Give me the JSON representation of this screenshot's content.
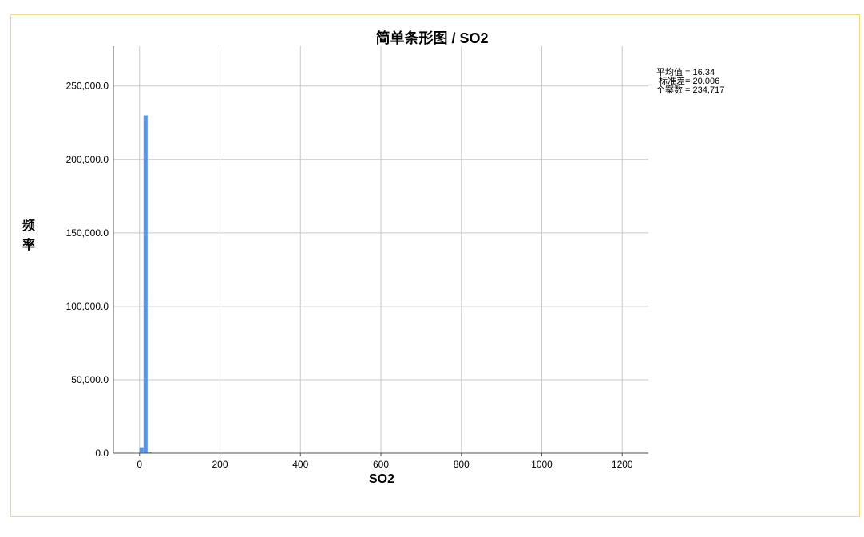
{
  "chart_data": {
    "type": "bar",
    "title": "简单条形图 / SO2",
    "xlabel": "SO2",
    "ylabel": "频率",
    "xlim": [
      -65,
      1265
    ],
    "ylim": [
      0,
      277000
    ],
    "xticks": [
      0,
      200,
      400,
      600,
      800,
      1000,
      1200
    ],
    "yticks": [
      0,
      50000,
      100000,
      150000,
      200000,
      250000
    ],
    "ytick_labels": [
      "0.0",
      "50,000.0",
      "100,000.0",
      "150,000.0",
      "200,000.0",
      "250,000.0"
    ],
    "grid": true,
    "bars": [
      {
        "x0": 0,
        "x1": 10,
        "value": 4000
      },
      {
        "x0": 10,
        "x1": 20,
        "value": 230000
      },
      {
        "x0": 20,
        "x1": 30,
        "value": 500
      }
    ],
    "bar_color": "#5b96e6",
    "stats": [
      {
        "label": "平均值 = ",
        "value": "16.34"
      },
      {
        "label": " 标准差= ",
        "value": "20.006"
      },
      {
        "label": "个案数 = ",
        "value": "234,717"
      }
    ]
  }
}
